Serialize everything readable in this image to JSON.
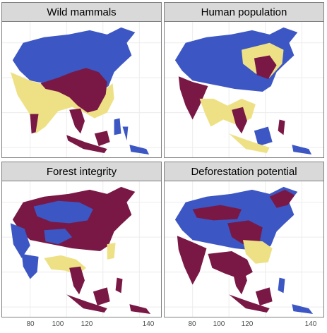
{
  "colors": {
    "high": "#7a1845",
    "medium": "#eee185",
    "low": "#3c56c4",
    "strip": "#d9d9d9",
    "grid": "#ececec",
    "border": "#7f7f7f"
  },
  "panels": [
    {
      "title": "Wild mammals"
    },
    {
      "title": "Human population"
    },
    {
      "title": "Forest integrity"
    },
    {
      "title": "Deforestation potential"
    }
  ],
  "x_axis": {
    "ticks": [
      "80",
      "100",
      "120",
      "140"
    ]
  }
}
